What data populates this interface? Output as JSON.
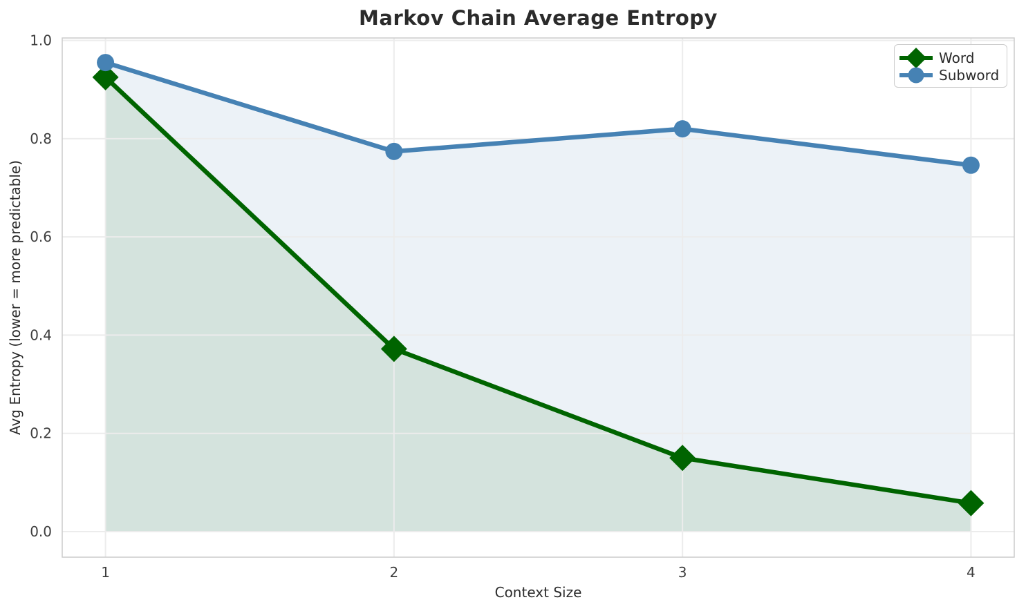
{
  "chart_data": {
    "type": "line",
    "title": "Markov Chain Average Entropy",
    "xlabel": "Context Size",
    "ylabel": "Avg Entropy (lower = more predictable)",
    "x": [
      1,
      2,
      3,
      4
    ],
    "series": [
      {
        "name": "Word",
        "values": [
          0.925,
          0.372,
          0.15,
          0.058
        ],
        "color": "#006400",
        "fill": "rgba(0,100,0,0.10)",
        "marker": "diamond"
      },
      {
        "name": "Subword",
        "values": [
          0.955,
          0.774,
          0.82,
          0.746
        ],
        "color": "#4682b4",
        "fill": "rgba(70,130,180,0.10)",
        "marker": "circle"
      }
    ],
    "fill_baseline": 0,
    "xticks": [
      "1",
      "2",
      "3",
      "4"
    ],
    "yticks": [
      "0.0",
      "0.2",
      "0.4",
      "0.6",
      "0.8",
      "1.0"
    ],
    "xlim": [
      0.85,
      4.15
    ],
    "ylim": [
      -0.052,
      1.005
    ],
    "grid": true,
    "legend_position": "upper right",
    "colors": {
      "grid": "#ececec",
      "spine": "#cccccc",
      "title_text": "#2b2b2b",
      "tick_text": "#3d3d3d",
      "background": "#ffffff"
    }
  }
}
